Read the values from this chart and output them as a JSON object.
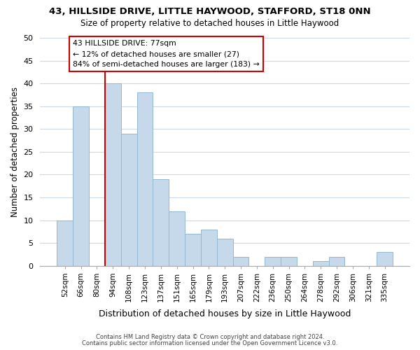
{
  "title": "43, HILLSIDE DRIVE, LITTLE HAYWOOD, STAFFORD, ST18 0NN",
  "subtitle": "Size of property relative to detached houses in Little Haywood",
  "xlabel": "Distribution of detached houses by size in Little Haywood",
  "ylabel": "Number of detached properties",
  "categories": [
    "52sqm",
    "66sqm",
    "80sqm",
    "94sqm",
    "108sqm",
    "123sqm",
    "137sqm",
    "151sqm",
    "165sqm",
    "179sqm",
    "193sqm",
    "207sqm",
    "222sqm",
    "236sqm",
    "250sqm",
    "264sqm",
    "278sqm",
    "292sqm",
    "306sqm",
    "321sqm",
    "335sqm"
  ],
  "values": [
    10,
    35,
    0,
    40,
    29,
    38,
    19,
    12,
    7,
    8,
    6,
    2,
    0,
    2,
    2,
    0,
    1,
    2,
    0,
    0,
    3
  ],
  "bar_color": "#c5d9ea",
  "bar_edge_color": "#92b8d4",
  "vline_color": "#cc0000",
  "ylim": [
    0,
    50
  ],
  "yticks": [
    0,
    5,
    10,
    15,
    20,
    25,
    30,
    35,
    40,
    45,
    50
  ],
  "annotation_title": "43 HILLSIDE DRIVE: 77sqm",
  "annotation_line1": "← 12% of detached houses are smaller (27)",
  "annotation_line2": "84% of semi-detached houses are larger (183) →",
  "annotation_box_color": "#ffffff",
  "annotation_box_edge": "#cc0000",
  "footer1": "Contains HM Land Registry data © Crown copyright and database right 2024.",
  "footer2": "Contains public sector information licensed under the Open Government Licence v3.0.",
  "bg_color": "#ffffff",
  "grid_color": "#ccd9e8"
}
